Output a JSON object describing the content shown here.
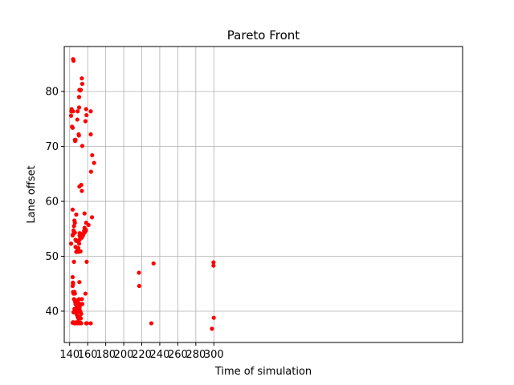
{
  "chart_data": {
    "type": "scatter",
    "title": "Pareto Front",
    "xlabel": "Time of simulation",
    "ylabel": "Lane offset",
    "xlim": [
      134,
      576
    ],
    "ylim": [
      34.3,
      88.2
    ],
    "x_ticks": [
      140,
      160,
      180,
      200,
      220,
      240,
      260,
      280,
      300
    ],
    "y_ticks": [
      40,
      50,
      60,
      70,
      80
    ],
    "grid": true,
    "marker_color": "#ff0000",
    "series": [
      {
        "points": [
          [
            143.8,
            85.9
          ],
          [
            144.3,
            85.6
          ],
          [
            153.5,
            82.4
          ],
          [
            154.0,
            81.4
          ],
          [
            150.8,
            80.3
          ],
          [
            151.6,
            80.2
          ],
          [
            152.3,
            80.3
          ],
          [
            150.5,
            79.0
          ],
          [
            142.1,
            76.8
          ],
          [
            141.9,
            76.4
          ],
          [
            141.6,
            75.6
          ],
          [
            143.8,
            76.4
          ],
          [
            148.9,
            76.4
          ],
          [
            150.5,
            77.1
          ],
          [
            158.3,
            76.8
          ],
          [
            158.7,
            75.7
          ],
          [
            157.5,
            74.6
          ],
          [
            163.4,
            76.4
          ],
          [
            148.5,
            74.9
          ],
          [
            142.6,
            73.6
          ],
          [
            143.3,
            73.4
          ],
          [
            150.0,
            72.2
          ],
          [
            150.3,
            72.0
          ],
          [
            163.4,
            72.2
          ],
          [
            145.8,
            71.2
          ],
          [
            146.5,
            71.2
          ],
          [
            146.1,
            71.0
          ],
          [
            154.0,
            70.1
          ],
          [
            165.0,
            68.4
          ],
          [
            167.1,
            67.0
          ],
          [
            163.7,
            65.4
          ],
          [
            150.8,
            62.7
          ],
          [
            152.8,
            63.0
          ],
          [
            153.5,
            61.9
          ],
          [
            143.3,
            58.5
          ],
          [
            147.3,
            57.6
          ],
          [
            156.5,
            57.8
          ],
          [
            158.3,
            56.1
          ],
          [
            164.8,
            57.1
          ],
          [
            145.3,
            56.5
          ],
          [
            145.8,
            56.1
          ],
          [
            160.9,
            55.7
          ],
          [
            144.8,
            55.5
          ],
          [
            144.3,
            54.7
          ],
          [
            143.3,
            53.8
          ],
          [
            141.6,
            52.3
          ],
          [
            144.0,
            54.1
          ],
          [
            145.8,
            54.3
          ],
          [
            146.5,
            53.0
          ],
          [
            148.5,
            52.8
          ],
          [
            147.3,
            52.8
          ],
          [
            151.0,
            53.8
          ],
          [
            151.6,
            53.5
          ],
          [
            152.3,
            54.1
          ],
          [
            152.8,
            53.6
          ],
          [
            153.5,
            53.4
          ],
          [
            154.5,
            53.7
          ],
          [
            155.2,
            54.0
          ],
          [
            156.0,
            54.6
          ],
          [
            156.5,
            55.2
          ],
          [
            157.5,
            54.9
          ],
          [
            157.0,
            54.4
          ],
          [
            158.0,
            54.7
          ],
          [
            150.5,
            52.3
          ],
          [
            151.0,
            53.0
          ],
          [
            149.5,
            51.5
          ],
          [
            148.9,
            51.2
          ],
          [
            149.7,
            50.8
          ],
          [
            147.3,
            50.8
          ],
          [
            148.5,
            51.0
          ],
          [
            146.5,
            51.7
          ],
          [
            152.0,
            50.9
          ],
          [
            151.1,
            54.2
          ],
          [
            144.8,
            49.0
          ],
          [
            158.9,
            49.0
          ],
          [
            143.3,
            46.2
          ],
          [
            143.6,
            45.2
          ],
          [
            143.8,
            45.0
          ],
          [
            143.3,
            44.6
          ],
          [
            143.8,
            43.5
          ],
          [
            144.3,
            43.2
          ],
          [
            145.3,
            43.5
          ],
          [
            145.8,
            43.2
          ],
          [
            150.8,
            45.3
          ],
          [
            157.5,
            43.2
          ],
          [
            144.8,
            42.2
          ],
          [
            146.1,
            41.7
          ],
          [
            146.5,
            41.3
          ],
          [
            147.3,
            41.6
          ],
          [
            147.8,
            40.9
          ],
          [
            148.2,
            40.6
          ],
          [
            148.9,
            40.3
          ],
          [
            149.5,
            40.0
          ],
          [
            150.0,
            40.9
          ],
          [
            150.5,
            41.4
          ],
          [
            151.0,
            40.6
          ],
          [
            151.6,
            40.0
          ],
          [
            152.0,
            39.8
          ],
          [
            152.8,
            39.5
          ],
          [
            153.5,
            42.2
          ],
          [
            154.0,
            41.3
          ],
          [
            145.3,
            40.4
          ],
          [
            146.5,
            39.8
          ],
          [
            147.3,
            39.6
          ],
          [
            148.2,
            39.3
          ],
          [
            149.0,
            38.9
          ],
          [
            150.0,
            38.6
          ],
          [
            151.0,
            38.9
          ],
          [
            152.3,
            38.7
          ],
          [
            144.3,
            39.8
          ],
          [
            148.9,
            42.0
          ],
          [
            150.5,
            42.2
          ],
          [
            146.0,
            40.0
          ],
          [
            150.8,
            40.2
          ],
          [
            151.3,
            41.0
          ],
          [
            149.2,
            40.4
          ],
          [
            147.0,
            40.2
          ],
          [
            143.3,
            37.9
          ],
          [
            143.8,
            38.0
          ],
          [
            144.3,
            37.9
          ],
          [
            145.3,
            37.8
          ],
          [
            145.8,
            37.9
          ],
          [
            146.5,
            37.8
          ],
          [
            147.3,
            38.0
          ],
          [
            148.2,
            37.9
          ],
          [
            149.0,
            37.8
          ],
          [
            150.0,
            37.9
          ],
          [
            151.0,
            37.8
          ],
          [
            152.0,
            37.9
          ],
          [
            152.8,
            37.8
          ],
          [
            158.3,
            37.8
          ],
          [
            159.3,
            37.8
          ],
          [
            163.4,
            37.8
          ],
          [
            216.9,
            47.0
          ],
          [
            217.2,
            44.6
          ],
          [
            233.1,
            48.7
          ],
          [
            230.6,
            37.8
          ],
          [
            299.6,
            48.9
          ],
          [
            299.6,
            48.3
          ],
          [
            299.9,
            38.8
          ],
          [
            297.9,
            36.8
          ]
        ]
      }
    ]
  }
}
